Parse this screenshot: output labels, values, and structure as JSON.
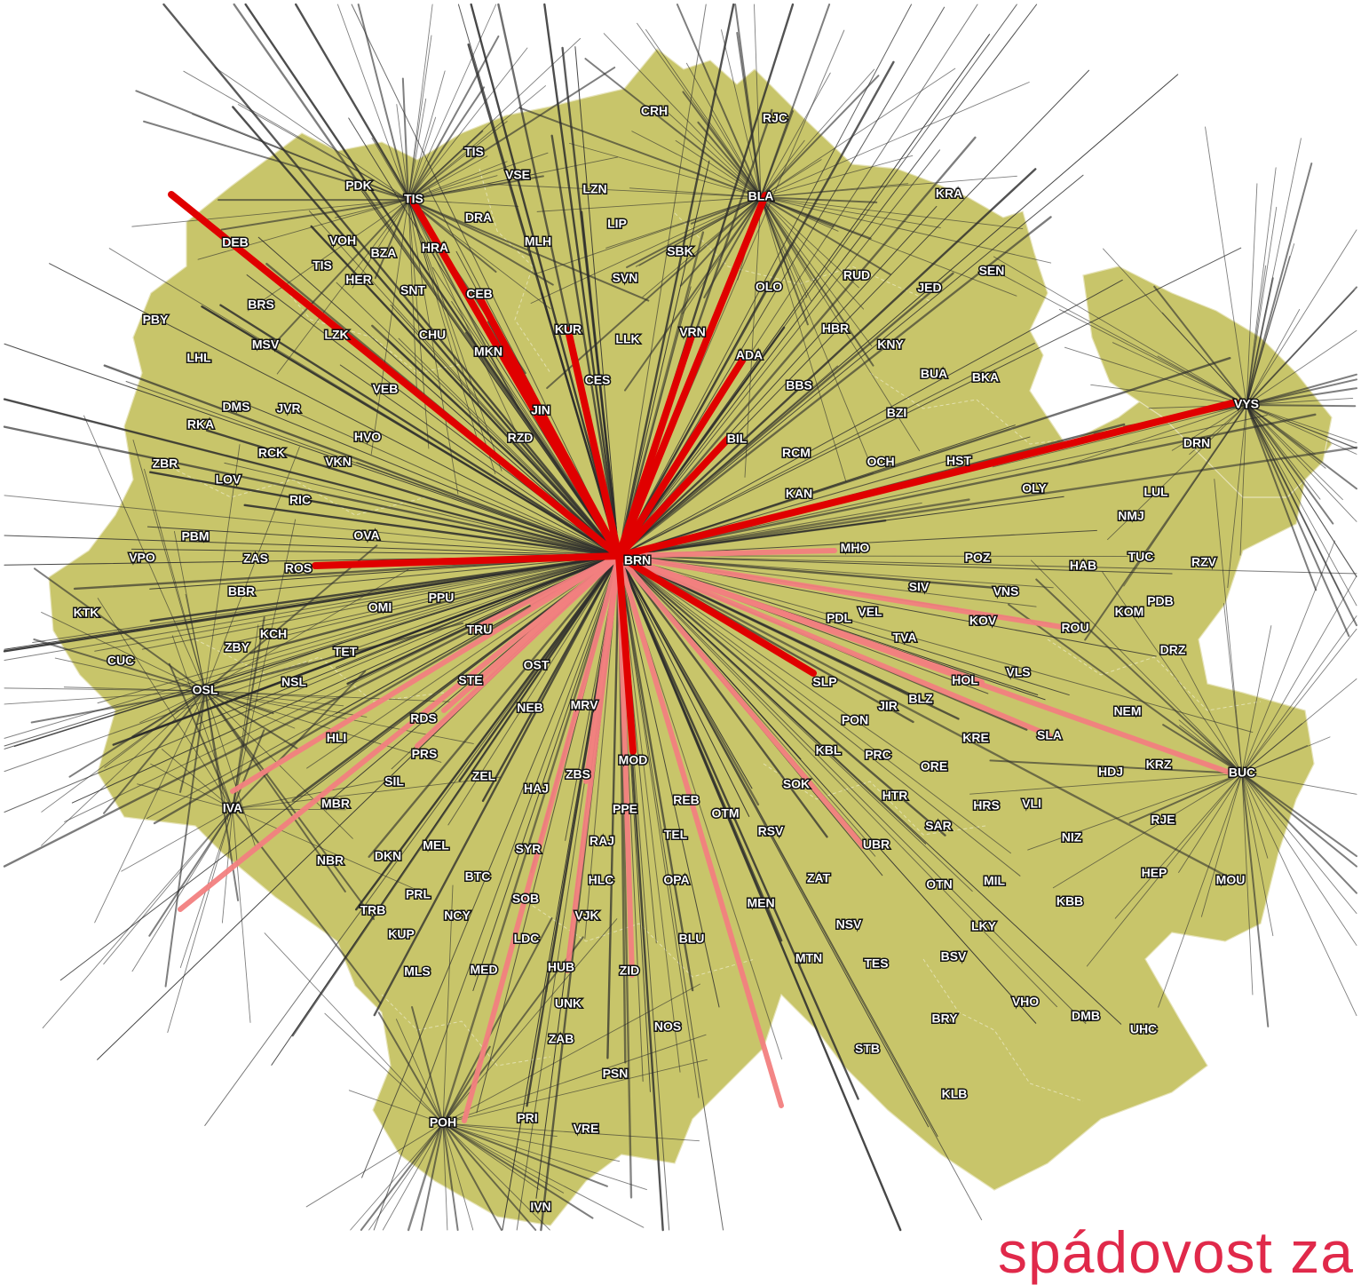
{
  "colors": {
    "region": "#c8c56a",
    "strong": "#e00000",
    "medium": "#f38080",
    "weak": "#2b2b2b",
    "caption": "#e0294a"
  },
  "caption": "spádovost za",
  "hub": "BRN",
  "places": [
    {
      "code": "CRH"
    },
    {
      "code": "RJC"
    },
    {
      "code": "TIS"
    },
    {
      "code": "VSE"
    },
    {
      "code": "LZN"
    },
    {
      "code": "PDK"
    },
    {
      "code": "TIS"
    },
    {
      "code": "BLA"
    },
    {
      "code": "KRA"
    },
    {
      "code": "DRA"
    },
    {
      "code": "LIP"
    },
    {
      "code": "DEB"
    },
    {
      "code": "VOH"
    },
    {
      "code": "HRA"
    },
    {
      "code": "MLH"
    },
    {
      "code": "SBK"
    },
    {
      "code": "BZA"
    },
    {
      "code": "TIS"
    },
    {
      "code": "SEN"
    },
    {
      "code": "RUD"
    },
    {
      "code": "HER"
    },
    {
      "code": "SNT"
    },
    {
      "code": "CEB"
    },
    {
      "code": "SVN"
    },
    {
      "code": "OLO"
    },
    {
      "code": "JED"
    },
    {
      "code": "BRS"
    },
    {
      "code": "PBY"
    },
    {
      "code": "KUR"
    },
    {
      "code": "LLK"
    },
    {
      "code": "VRN"
    },
    {
      "code": "HBR"
    },
    {
      "code": "MSV"
    },
    {
      "code": "LZK"
    },
    {
      "code": "CHU"
    },
    {
      "code": "KNY"
    },
    {
      "code": "LHL"
    },
    {
      "code": "MKN"
    },
    {
      "code": "ADA"
    },
    {
      "code": "BUA"
    },
    {
      "code": "BKA"
    },
    {
      "code": "CES"
    },
    {
      "code": "BBS"
    },
    {
      "code": "VEB"
    },
    {
      "code": "VYS"
    },
    {
      "code": "DMS"
    },
    {
      "code": "JVR"
    },
    {
      "code": "JIN"
    },
    {
      "code": "BZI"
    },
    {
      "code": "RKA"
    },
    {
      "code": "HVO"
    },
    {
      "code": "RZD"
    },
    {
      "code": "BIL"
    },
    {
      "code": "DRN"
    },
    {
      "code": "RCK"
    },
    {
      "code": "ZBR"
    },
    {
      "code": "VKN"
    },
    {
      "code": "RCM"
    },
    {
      "code": "OCH"
    },
    {
      "code": "HST"
    },
    {
      "code": "LOV"
    },
    {
      "code": "OLY"
    },
    {
      "code": "KAN"
    },
    {
      "code": "LUL"
    },
    {
      "code": "RIC"
    },
    {
      "code": "NMJ"
    },
    {
      "code": "PBM"
    },
    {
      "code": "OVA"
    },
    {
      "code": "MHO"
    },
    {
      "code": "TUC"
    },
    {
      "code": "VPO"
    },
    {
      "code": "ZAS"
    },
    {
      "code": "POZ"
    },
    {
      "code": "HAB"
    },
    {
      "code": "RZV"
    },
    {
      "code": "ROS"
    },
    {
      "code": "BRN"
    },
    {
      "code": "BBR"
    },
    {
      "code": "SIV"
    },
    {
      "code": "VNS"
    },
    {
      "code": "PDB"
    },
    {
      "code": "PPU"
    },
    {
      "code": "KOM"
    },
    {
      "code": "OMI"
    },
    {
      "code": "VEL"
    },
    {
      "code": "KTK"
    },
    {
      "code": "PDL"
    },
    {
      "code": "KOV"
    },
    {
      "code": "ROU"
    },
    {
      "code": "KCH"
    },
    {
      "code": "TRU"
    },
    {
      "code": "ZBY"
    },
    {
      "code": "TVA"
    },
    {
      "code": "DRZ"
    },
    {
      "code": "TET"
    },
    {
      "code": "CUC"
    },
    {
      "code": "VLS"
    },
    {
      "code": "OST"
    },
    {
      "code": "STE"
    },
    {
      "code": "NSL"
    },
    {
      "code": "SLP"
    },
    {
      "code": "HOL"
    },
    {
      "code": "OSL"
    },
    {
      "code": "MRV"
    },
    {
      "code": "NEB"
    },
    {
      "code": "JIR"
    },
    {
      "code": "BLZ"
    },
    {
      "code": "NEM"
    },
    {
      "code": "RDS"
    },
    {
      "code": "PON"
    },
    {
      "code": "HLI"
    },
    {
      "code": "SLA"
    },
    {
      "code": "KRE"
    },
    {
      "code": "PRS"
    },
    {
      "code": "MOD"
    },
    {
      "code": "KBL"
    },
    {
      "code": "PRC"
    },
    {
      "code": "ORE"
    },
    {
      "code": "ZEL"
    },
    {
      "code": "ZBS"
    },
    {
      "code": "HDJ"
    },
    {
      "code": "KRZ"
    },
    {
      "code": "BUC"
    },
    {
      "code": "SIL"
    },
    {
      "code": "HAJ"
    },
    {
      "code": "SOK"
    },
    {
      "code": "MBR"
    },
    {
      "code": "IVA"
    },
    {
      "code": "PPE"
    },
    {
      "code": "REB"
    },
    {
      "code": "HTR"
    },
    {
      "code": "HRS"
    },
    {
      "code": "VLI"
    },
    {
      "code": "OTM"
    },
    {
      "code": "RSV"
    },
    {
      "code": "RJE"
    },
    {
      "code": "TEL"
    },
    {
      "code": "SAR"
    },
    {
      "code": "NIZ"
    },
    {
      "code": "MEL"
    },
    {
      "code": "UBR"
    },
    {
      "code": "RAJ"
    },
    {
      "code": "SYR"
    },
    {
      "code": "NBR"
    },
    {
      "code": "DKN"
    },
    {
      "code": "HEP"
    },
    {
      "code": "MOU"
    },
    {
      "code": "BTC"
    },
    {
      "code": "HLC"
    },
    {
      "code": "OPA"
    },
    {
      "code": "ZAT"
    },
    {
      "code": "MIL"
    },
    {
      "code": "OTN"
    },
    {
      "code": "PRL"
    },
    {
      "code": "SOB"
    },
    {
      "code": "KBB"
    },
    {
      "code": "TRB"
    },
    {
      "code": "NCY"
    },
    {
      "code": "VJK"
    },
    {
      "code": "MEN"
    },
    {
      "code": "NSV"
    },
    {
      "code": "LKY"
    },
    {
      "code": "KUP"
    },
    {
      "code": "LDC"
    },
    {
      "code": "BLU"
    },
    {
      "code": "MTN"
    },
    {
      "code": "BSV"
    },
    {
      "code": "TES"
    },
    {
      "code": "MLS"
    },
    {
      "code": "MED"
    },
    {
      "code": "HUB"
    },
    {
      "code": "ZID"
    },
    {
      "code": "UNK"
    },
    {
      "code": "VHO"
    },
    {
      "code": "DMB"
    },
    {
      "code": "BRY"
    },
    {
      "code": "NOS"
    },
    {
      "code": "UHC"
    },
    {
      "code": "ZAB"
    },
    {
      "code": "STB"
    },
    {
      "code": "PSN"
    },
    {
      "code": "KLB"
    },
    {
      "code": "POH"
    },
    {
      "code": "PRI"
    },
    {
      "code": "VRE"
    },
    {
      "code": "IVN"
    }
  ]
}
